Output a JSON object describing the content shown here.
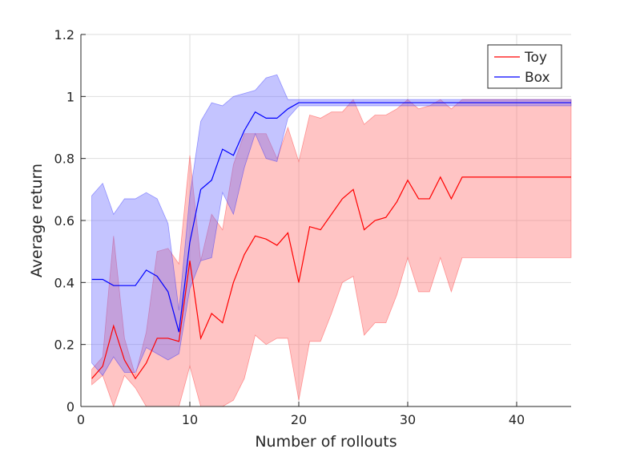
{
  "chart_data": {
    "type": "line",
    "xlabel": "Number of rollouts",
    "ylabel": "Average return",
    "xlim": [
      0,
      45
    ],
    "ylim": [
      0,
      1.2
    ],
    "xticks": [
      0,
      10,
      20,
      30,
      40
    ],
    "yticks": [
      0,
      0.2,
      0.4,
      0.6,
      0.8,
      1,
      1.2
    ],
    "xtick_labels": [
      "0",
      "10",
      "20",
      "30",
      "40"
    ],
    "ytick_labels": [
      "0",
      "0.2",
      "0.4",
      "0.6",
      "0.8",
      "1",
      "1.2"
    ],
    "grid": true,
    "legend_position": "top-right",
    "series": [
      {
        "name": "Toy",
        "color": "#ff0000",
        "band_color": "#ff6b6b",
        "band_opacity": 0.4,
        "x": [
          1,
          2,
          3,
          4,
          5,
          6,
          7,
          8,
          9,
          10,
          11,
          12,
          13,
          14,
          15,
          16,
          17,
          18,
          19,
          20,
          21,
          22,
          23,
          24,
          25,
          26,
          27,
          28,
          29,
          30,
          31,
          32,
          33,
          34,
          35,
          36,
          37,
          38,
          39,
          40,
          41,
          42,
          43,
          44,
          45
        ],
        "mean": [
          0.09,
          0.13,
          0.26,
          0.15,
          0.09,
          0.14,
          0.22,
          0.22,
          0.21,
          0.47,
          0.22,
          0.3,
          0.27,
          0.4,
          0.49,
          0.55,
          0.54,
          0.52,
          0.56,
          0.4,
          0.58,
          0.57,
          0.62,
          0.67,
          0.7,
          0.57,
          0.6,
          0.61,
          0.66,
          0.73,
          0.67,
          0.67,
          0.74,
          0.67,
          0.74,
          0.74,
          0.74,
          0.74,
          0.74,
          0.74,
          0.74,
          0.74,
          0.74,
          0.74,
          0.74
        ],
        "upper": [
          0.12,
          0.16,
          0.55,
          0.22,
          0.1,
          0.24,
          0.5,
          0.51,
          0.46,
          0.81,
          0.47,
          0.62,
          0.57,
          0.78,
          0.88,
          0.88,
          0.88,
          0.8,
          0.9,
          0.79,
          0.94,
          0.93,
          0.95,
          0.95,
          0.99,
          0.91,
          0.94,
          0.94,
          0.96,
          0.99,
          0.96,
          0.97,
          0.99,
          0.96,
          0.99,
          0.99,
          0.99,
          0.99,
          0.99,
          0.99,
          0.99,
          0.99,
          0.99,
          0.99,
          0.99
        ],
        "lower": [
          0.07,
          0.1,
          0,
          0.1,
          0.06,
          0,
          0,
          0,
          0,
          0.13,
          0,
          0,
          0,
          0.02,
          0.09,
          0.23,
          0.2,
          0.22,
          0.22,
          0.02,
          0.21,
          0.21,
          0.3,
          0.4,
          0.42,
          0.23,
          0.27,
          0.27,
          0.36,
          0.48,
          0.37,
          0.37,
          0.48,
          0.37,
          0.48,
          0.48,
          0.48,
          0.48,
          0.48,
          0.48,
          0.48,
          0.48,
          0.48,
          0.48,
          0.48
        ]
      },
      {
        "name": "Box",
        "color": "#0000ff",
        "band_color": "#6b6bff",
        "band_opacity": 0.4,
        "x": [
          1,
          2,
          3,
          4,
          5,
          6,
          7,
          8,
          9,
          10,
          11,
          12,
          13,
          14,
          15,
          16,
          17,
          18,
          19,
          20,
          21,
          22,
          23,
          24,
          25,
          26,
          27,
          28,
          29,
          30,
          31,
          32,
          33,
          34,
          35,
          36,
          37,
          38,
          39,
          40,
          41,
          42,
          43,
          44,
          45
        ],
        "mean": [
          0.41,
          0.41,
          0.39,
          0.39,
          0.39,
          0.44,
          0.42,
          0.37,
          0.24,
          0.53,
          0.7,
          0.73,
          0.83,
          0.81,
          0.89,
          0.95,
          0.93,
          0.93,
          0.96,
          0.98,
          0.98,
          0.98,
          0.98,
          0.98,
          0.98,
          0.98,
          0.98,
          0.98,
          0.98,
          0.98,
          0.98,
          0.98,
          0.98,
          0.98,
          0.98,
          0.98,
          0.98,
          0.98,
          0.98,
          0.98,
          0.98,
          0.98,
          0.98,
          0.98,
          0.98
        ],
        "upper": [
          0.68,
          0.72,
          0.62,
          0.67,
          0.67,
          0.69,
          0.67,
          0.59,
          0.31,
          0.68,
          0.92,
          0.98,
          0.97,
          1.0,
          1.01,
          1.02,
          1.06,
          1.07,
          0.99,
          0.99,
          0.99,
          0.99,
          0.99,
          0.99,
          0.99,
          0.99,
          0.99,
          0.99,
          0.99,
          0.99,
          0.99,
          0.99,
          0.99,
          0.99,
          0.99,
          0.99,
          0.99,
          0.99,
          0.99,
          0.99,
          0.99,
          0.99,
          0.99,
          0.99,
          0.99
        ],
        "lower": [
          0.14,
          0.1,
          0.16,
          0.11,
          0.11,
          0.19,
          0.17,
          0.15,
          0.17,
          0.38,
          0.47,
          0.48,
          0.69,
          0.62,
          0.77,
          0.88,
          0.8,
          0.79,
          0.93,
          0.97,
          0.97,
          0.97,
          0.97,
          0.97,
          0.97,
          0.97,
          0.97,
          0.97,
          0.97,
          0.97,
          0.97,
          0.97,
          0.97,
          0.97,
          0.97,
          0.97,
          0.97,
          0.97,
          0.97,
          0.97,
          0.97,
          0.97,
          0.97,
          0.97,
          0.97
        ]
      }
    ]
  }
}
